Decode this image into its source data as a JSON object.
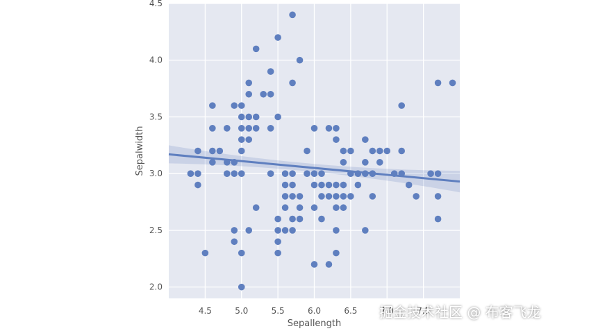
{
  "chart_data": {
    "type": "scatter",
    "title": "",
    "xlabel": "Sepallength",
    "ylabel": "Sepalwidth",
    "xlim": [
      4.0,
      8.0
    ],
    "ylim": [
      1.9,
      4.5
    ],
    "xticks": [
      "4.5",
      "5.0",
      "5.5",
      "6.0",
      "6.5",
      "7.0",
      "7.5"
    ],
    "yticks": [
      "2.0",
      "2.5",
      "3.0",
      "3.5",
      "4.0",
      "4.5"
    ],
    "grid": true,
    "background": "#e5e8f1",
    "point_color": "#5f7fbf",
    "line_color": "#5f7fbf",
    "regression": {
      "x0": 4.0,
      "y0": 3.17,
      "x1": 8.0,
      "y1": 2.93
    },
    "points": [
      [
        4.3,
        3.0
      ],
      [
        4.4,
        3.2
      ],
      [
        4.4,
        3.0
      ],
      [
        4.4,
        2.9
      ],
      [
        4.5,
        2.3
      ],
      [
        4.6,
        3.6
      ],
      [
        4.6,
        3.4
      ],
      [
        4.6,
        3.2
      ],
      [
        4.6,
        3.1
      ],
      [
        4.7,
        3.2
      ],
      [
        4.8,
        3.4
      ],
      [
        4.8,
        3.1
      ],
      [
        4.8,
        3.0
      ],
      [
        4.9,
        3.6
      ],
      [
        4.9,
        3.1
      ],
      [
        4.9,
        3.0
      ],
      [
        4.9,
        2.5
      ],
      [
        4.9,
        2.4
      ],
      [
        5.0,
        3.6
      ],
      [
        5.0,
        3.5
      ],
      [
        5.0,
        3.4
      ],
      [
        5.0,
        3.3
      ],
      [
        5.0,
        3.2
      ],
      [
        5.0,
        3.0
      ],
      [
        5.0,
        2.3
      ],
      [
        5.0,
        2.0
      ],
      [
        5.1,
        3.8
      ],
      [
        5.1,
        3.7
      ],
      [
        5.1,
        3.5
      ],
      [
        5.1,
        3.4
      ],
      [
        5.1,
        3.3
      ],
      [
        5.1,
        2.5
      ],
      [
        5.2,
        4.1
      ],
      [
        5.2,
        3.5
      ],
      [
        5.2,
        3.4
      ],
      [
        5.2,
        2.7
      ],
      [
        5.3,
        3.7
      ],
      [
        5.4,
        3.9
      ],
      [
        5.4,
        3.7
      ],
      [
        5.4,
        3.4
      ],
      [
        5.4,
        3.0
      ],
      [
        5.5,
        4.2
      ],
      [
        5.5,
        3.5
      ],
      [
        5.5,
        2.6
      ],
      [
        5.5,
        2.5
      ],
      [
        5.5,
        2.4
      ],
      [
        5.5,
        2.3
      ],
      [
        5.6,
        3.0
      ],
      [
        5.6,
        2.9
      ],
      [
        5.6,
        2.8
      ],
      [
        5.6,
        2.7
      ],
      [
        5.6,
        2.5
      ],
      [
        5.7,
        4.4
      ],
      [
        5.7,
        3.8
      ],
      [
        5.7,
        3.0
      ],
      [
        5.7,
        2.9
      ],
      [
        5.7,
        2.8
      ],
      [
        5.7,
        2.6
      ],
      [
        5.7,
        2.5
      ],
      [
        5.8,
        4.0
      ],
      [
        5.8,
        2.8
      ],
      [
        5.8,
        2.7
      ],
      [
        5.8,
        2.6
      ],
      [
        5.9,
        3.2
      ],
      [
        5.9,
        3.0
      ],
      [
        6.0,
        3.4
      ],
      [
        6.0,
        3.0
      ],
      [
        6.0,
        2.9
      ],
      [
        6.0,
        2.7
      ],
      [
        6.0,
        2.2
      ],
      [
        6.1,
        3.0
      ],
      [
        6.1,
        2.9
      ],
      [
        6.1,
        2.8
      ],
      [
        6.1,
        2.6
      ],
      [
        6.2,
        3.4
      ],
      [
        6.2,
        2.9
      ],
      [
        6.2,
        2.8
      ],
      [
        6.2,
        2.2
      ],
      [
        6.3,
        3.4
      ],
      [
        6.3,
        3.3
      ],
      [
        6.3,
        2.9
      ],
      [
        6.3,
        2.8
      ],
      [
        6.3,
        2.7
      ],
      [
        6.3,
        2.5
      ],
      [
        6.3,
        2.3
      ],
      [
        6.4,
        3.2
      ],
      [
        6.4,
        3.1
      ],
      [
        6.4,
        2.9
      ],
      [
        6.4,
        2.8
      ],
      [
        6.4,
        2.7
      ],
      [
        6.5,
        3.2
      ],
      [
        6.5,
        3.0
      ],
      [
        6.5,
        2.8
      ],
      [
        6.6,
        3.0
      ],
      [
        6.6,
        2.9
      ],
      [
        6.7,
        3.3
      ],
      [
        6.7,
        3.1
      ],
      [
        6.7,
        3.0
      ],
      [
        6.7,
        2.5
      ],
      [
        6.8,
        3.2
      ],
      [
        6.8,
        3.0
      ],
      [
        6.8,
        2.8
      ],
      [
        6.9,
        3.2
      ],
      [
        6.9,
        3.1
      ],
      [
        7.0,
        3.2
      ],
      [
        7.1,
        3.0
      ],
      [
        7.2,
        3.6
      ],
      [
        7.2,
        3.2
      ],
      [
        7.2,
        3.0
      ],
      [
        7.3,
        2.9
      ],
      [
        7.4,
        2.8
      ],
      [
        7.6,
        3.0
      ],
      [
        7.7,
        3.8
      ],
      [
        7.7,
        3.0
      ],
      [
        7.7,
        2.8
      ],
      [
        7.7,
        2.6
      ],
      [
        7.9,
        3.8
      ]
    ]
  },
  "watermark": "掘金技术社区 @ 布客飞龙"
}
